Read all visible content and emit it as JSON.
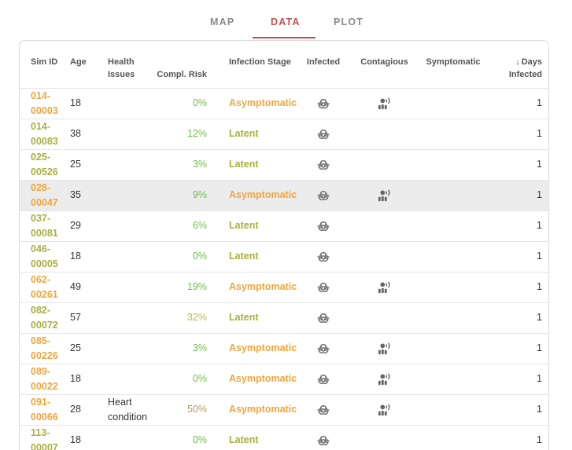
{
  "tabs": [
    {
      "label": "MAP",
      "active": false
    },
    {
      "label": "DATA",
      "active": true
    },
    {
      "label": "PLOT",
      "active": false
    }
  ],
  "colors": {
    "accent": "#c0504d",
    "asymptomatic": "#f0a63c",
    "latent": "#a8b040",
    "risk_low": "#6fbf4a",
    "risk_mid": "#b8bb5a",
    "risk_high": "#b89a5a"
  },
  "table": {
    "headers": {
      "sim_id": "Sim ID",
      "age": "Age",
      "health": "Health Issues",
      "risk": "Compl. Risk",
      "stage": "Infection Stage",
      "infected": "Infected",
      "contagious": "Contagious",
      "symptomatic": "Symptomatic",
      "days_arrow": "↓",
      "days": "Days Infected"
    },
    "sort": {
      "column": "days",
      "direction": "descending"
    },
    "rows": [
      {
        "id_a": "014-",
        "id_b": "00003",
        "age": "18",
        "health": "",
        "risk": "0%",
        "stage": "Asymptomatic",
        "infected": true,
        "contagious": true,
        "symptomatic": false,
        "days": "1",
        "highlight": false
      },
      {
        "id_a": "014-",
        "id_b": "00083",
        "age": "38",
        "health": "",
        "risk": "12%",
        "stage": "Latent",
        "infected": true,
        "contagious": false,
        "symptomatic": false,
        "days": "1",
        "highlight": false
      },
      {
        "id_a": "025-",
        "id_b": "00526",
        "age": "25",
        "health": "",
        "risk": "3%",
        "stage": "Latent",
        "infected": true,
        "contagious": false,
        "symptomatic": false,
        "days": "1",
        "highlight": false
      },
      {
        "id_a": "028-",
        "id_b": "00047",
        "age": "35",
        "health": "",
        "risk": "9%",
        "stage": "Asymptomatic",
        "infected": true,
        "contagious": true,
        "symptomatic": false,
        "days": "1",
        "highlight": true
      },
      {
        "id_a": "037-",
        "id_b": "00081",
        "age": "29",
        "health": "",
        "risk": "6%",
        "stage": "Latent",
        "infected": true,
        "contagious": false,
        "symptomatic": false,
        "days": "1",
        "highlight": false
      },
      {
        "id_a": "046-",
        "id_b": "00005",
        "age": "18",
        "health": "",
        "risk": "0%",
        "stage": "Latent",
        "infected": true,
        "contagious": false,
        "symptomatic": false,
        "days": "1",
        "highlight": false
      },
      {
        "id_a": "062-",
        "id_b": "00261",
        "age": "49",
        "health": "",
        "risk": "19%",
        "stage": "Asymptomatic",
        "infected": true,
        "contagious": true,
        "symptomatic": false,
        "days": "1",
        "highlight": false
      },
      {
        "id_a": "082-",
        "id_b": "00072",
        "age": "57",
        "health": "",
        "risk": "32%",
        "stage": "Latent",
        "infected": true,
        "contagious": false,
        "symptomatic": false,
        "days": "1",
        "highlight": false
      },
      {
        "id_a": "085-",
        "id_b": "00226",
        "age": "25",
        "health": "",
        "risk": "3%",
        "stage": "Asymptomatic",
        "infected": true,
        "contagious": true,
        "symptomatic": false,
        "days": "1",
        "highlight": false
      },
      {
        "id_a": "089-",
        "id_b": "00022",
        "age": "18",
        "health": "",
        "risk": "0%",
        "stage": "Asymptomatic",
        "infected": true,
        "contagious": true,
        "symptomatic": false,
        "days": "1",
        "highlight": false
      },
      {
        "id_a": "091-",
        "id_b": "00066",
        "age": "28",
        "health": "Heart condition",
        "risk": "50%",
        "stage": "Asymptomatic",
        "infected": true,
        "contagious": true,
        "symptomatic": false,
        "days": "1",
        "highlight": false
      },
      {
        "id_a": "113-",
        "id_b": "00007",
        "age": "18",
        "health": "",
        "risk": "0%",
        "stage": "Latent",
        "infected": true,
        "contagious": false,
        "symptomatic": false,
        "days": "1",
        "highlight": false
      }
    ]
  },
  "icons": {
    "infected": "biohazard-icon",
    "contagious": "contagious-person-icon"
  }
}
